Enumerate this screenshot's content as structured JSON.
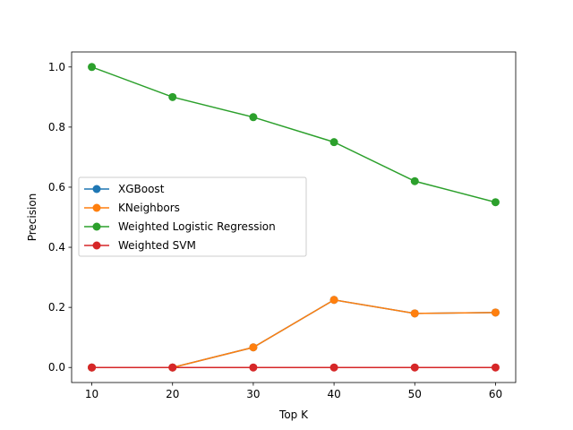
{
  "chart_data": {
    "type": "line",
    "title": "",
    "xlabel": "Top K",
    "ylabel": "Precision",
    "x": [
      10,
      20,
      30,
      40,
      50,
      60
    ],
    "xlim": [
      7.5,
      62.5
    ],
    "ylim": [
      -0.05,
      1.05
    ],
    "xticks": [
      10,
      20,
      30,
      40,
      50,
      60
    ],
    "yticks": [
      0.0,
      0.2,
      0.4,
      0.6,
      0.8,
      1.0
    ],
    "ytick_labels": [
      "0.0",
      "0.2",
      "0.4",
      "0.6",
      "0.8",
      "1.0"
    ],
    "grid": false,
    "legend_position": "center-left",
    "series": [
      {
        "name": "XGBoost",
        "color": "#1f77b4",
        "values": [
          0.0,
          0.0,
          0.067,
          0.225,
          0.18,
          0.183
        ]
      },
      {
        "name": "KNeighbors",
        "color": "#ff7f0e",
        "values": [
          0.0,
          0.0,
          0.067,
          0.225,
          0.18,
          0.183
        ]
      },
      {
        "name": "Weighted Logistic Regression",
        "color": "#2ca02c",
        "values": [
          1.0,
          0.9,
          0.833,
          0.75,
          0.62,
          0.55
        ]
      },
      {
        "name": "Weighted SVM",
        "color": "#d62728",
        "values": [
          0.0,
          0.0,
          0.0,
          0.0,
          0.0,
          0.0
        ]
      }
    ]
  }
}
